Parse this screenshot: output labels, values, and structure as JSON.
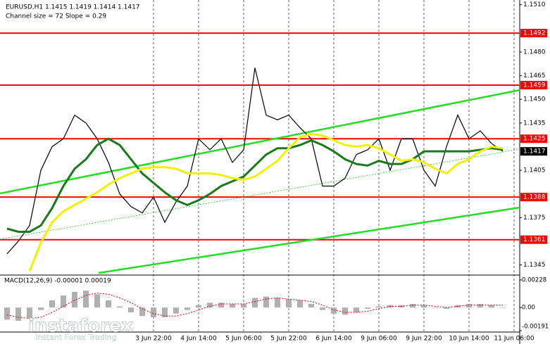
{
  "chart_data": {
    "type": "line",
    "title": "EURUSD,H1  1.1415 1.1419 1.1414 1.1417",
    "subtitle": "Channel size = 72 Slope = 0.29",
    "categories": [
      null,
      null,
      null,
      null,
      null,
      null,
      null,
      null,
      null,
      null,
      null,
      null,
      null,
      "3 Jun 22:00",
      null,
      null,
      null,
      "4 Jun 14:00",
      null,
      null,
      null,
      "5 Jun 06:00",
      null,
      null,
      null,
      "5 Jun 22:00",
      null,
      null,
      null,
      "6 Jun 14:00",
      null,
      null,
      null,
      "9 Jun 06:00",
      null,
      null,
      null,
      "9 Jun 22:00",
      null,
      null,
      null,
      "10 Jun 14:00",
      null,
      null,
      null,
      "11 Jun 06:00"
    ],
    "series": [
      {
        "color": "#000000",
        "values": [
          1.1352,
          1.136,
          1.137,
          1.1405,
          1.142,
          1.1425,
          1.144,
          1.1435,
          1.1425,
          1.141,
          1.139,
          1.1382,
          1.1378,
          1.1388,
          1.1372,
          1.1385,
          1.1395,
          1.1425,
          1.1418,
          1.1425,
          1.141,
          1.1418,
          1.147,
          1.144,
          1.1437,
          1.144,
          1.1432,
          1.1425,
          1.1395,
          1.1395,
          1.14,
          1.1415,
          1.1418,
          1.1425,
          1.1405,
          1.1425,
          1.1425,
          1.1405,
          1.1395,
          1.142,
          1.144,
          1.1425,
          1.143,
          1.1422,
          1.1417,
          null
        ]
      },
      {
        "color": "#1a7a1a",
        "values": [
          1.1368,
          1.1366,
          1.1366,
          1.137,
          1.1381,
          1.1395,
          1.1406,
          1.1412,
          1.1421,
          1.1425,
          1.1421,
          1.1412,
          1.1403,
          1.1397,
          1.1391,
          1.1386,
          1.1383,
          1.1386,
          1.139,
          1.1395,
          1.1398,
          1.1401,
          1.1408,
          1.1415,
          1.1419,
          1.1419,
          1.1421,
          1.1424,
          1.1421,
          1.1417,
          1.1412,
          1.1409,
          1.1408,
          1.1411,
          1.1409,
          1.1409,
          1.1412,
          1.1417,
          1.1417,
          1.1417,
          1.1417,
          1.1417,
          1.1418,
          1.1419,
          1.1418,
          null
        ]
      },
      {
        "color": "#f2f200",
        "values": [
          null,
          null,
          1.1341,
          1.1359,
          1.1372,
          1.1379,
          1.1383,
          1.1387,
          1.1391,
          1.1396,
          1.14,
          1.1403,
          1.1406,
          1.1407,
          1.1407,
          1.1406,
          1.1403,
          1.1403,
          1.1403,
          1.1402,
          1.14,
          1.1399,
          1.1401,
          1.1406,
          1.1411,
          1.1419,
          1.1426,
          1.1428,
          1.1427,
          1.1424,
          1.1421,
          1.142,
          1.1421,
          1.1419,
          1.1415,
          1.1411,
          1.1412,
          1.141,
          1.1406,
          1.1403,
          1.1409,
          1.1412,
          1.1417,
          1.142,
          1.1419,
          null
        ]
      }
    ],
    "ylim": [
      1.1339,
      1.1513
    ],
    "yticks": [
      {
        "value": 1.151,
        "label": "1.1510"
      },
      {
        "value": 1.148,
        "label": "1.1480"
      },
      1.1465,
      {
        "value": 1.145,
        "label": "1.1450"
      },
      1.1435,
      1.1405,
      1.1375,
      1.1345
    ],
    "levels": [
      1.1492,
      1.1459,
      1.1425,
      1.1388,
      1.1361
    ],
    "level_color": "#ff0000",
    "last_price": 1.1417,
    "macd": {
      "title": "MACD(12,26,9) -0.00001 0.00019",
      "histogram": [
        -0.001,
        -0.0011,
        -0.0009,
        -0.0002,
        0.0006,
        0.001,
        0.0013,
        0.0014,
        0.0011,
        0.0006,
        0.0001,
        -0.0004,
        -0.0007,
        -0.0008,
        -0.0008,
        -0.0005,
        -0.0002,
        0.0002,
        0.0004,
        0.0004,
        0.0003,
        0.0003,
        0.0008,
        0.0009,
        0.0008,
        0.0007,
        0.0006,
        0.0003,
        -0.0002,
        -0.0005,
        -0.0006,
        -0.0004,
        -0.0001,
        0.0001,
        0.0002,
        0.0002,
        0.0003,
        0.0002,
        0.0,
        -0.0001,
        0.0002,
        0.0003,
        0.0003,
        0.0002,
        -1e-05,
        null
      ],
      "signal": [
        -0.0006,
        -0.0008,
        -0.0009,
        -0.0008,
        -0.0004,
        0.0001,
        0.0006,
        0.001,
        0.0012,
        0.0011,
        0.0008,
        0.0004,
        -0.0001,
        -0.0005,
        -0.0007,
        -0.0007,
        -0.0005,
        -0.0002,
        0.0001,
        0.0003,
        0.0003,
        0.0003,
        0.0005,
        0.0007,
        0.0008,
        0.0007,
        0.0006,
        0.0005,
        0.0002,
        -0.0002,
        -0.0004,
        -0.0004,
        -0.0003,
        -0.0001,
        0.0001,
        0.0001,
        0.0002,
        0.0002,
        0.0001,
        0.0,
        0.0001,
        0.0002,
        0.0002,
        0.0002,
        0.00019,
        null
      ],
      "histogram_color": "#b0b0b0",
      "signal_color": "#e00000",
      "ylim": [
        -0.00191,
        0.00228
      ],
      "yticks": [
        0.00228,
        {
          "value": 0,
          "label": "0.00"
        },
        -0.00191
      ]
    },
    "watermark_brand": "instaforex",
    "watermark_tagline": "Instant Forex Trading"
  }
}
